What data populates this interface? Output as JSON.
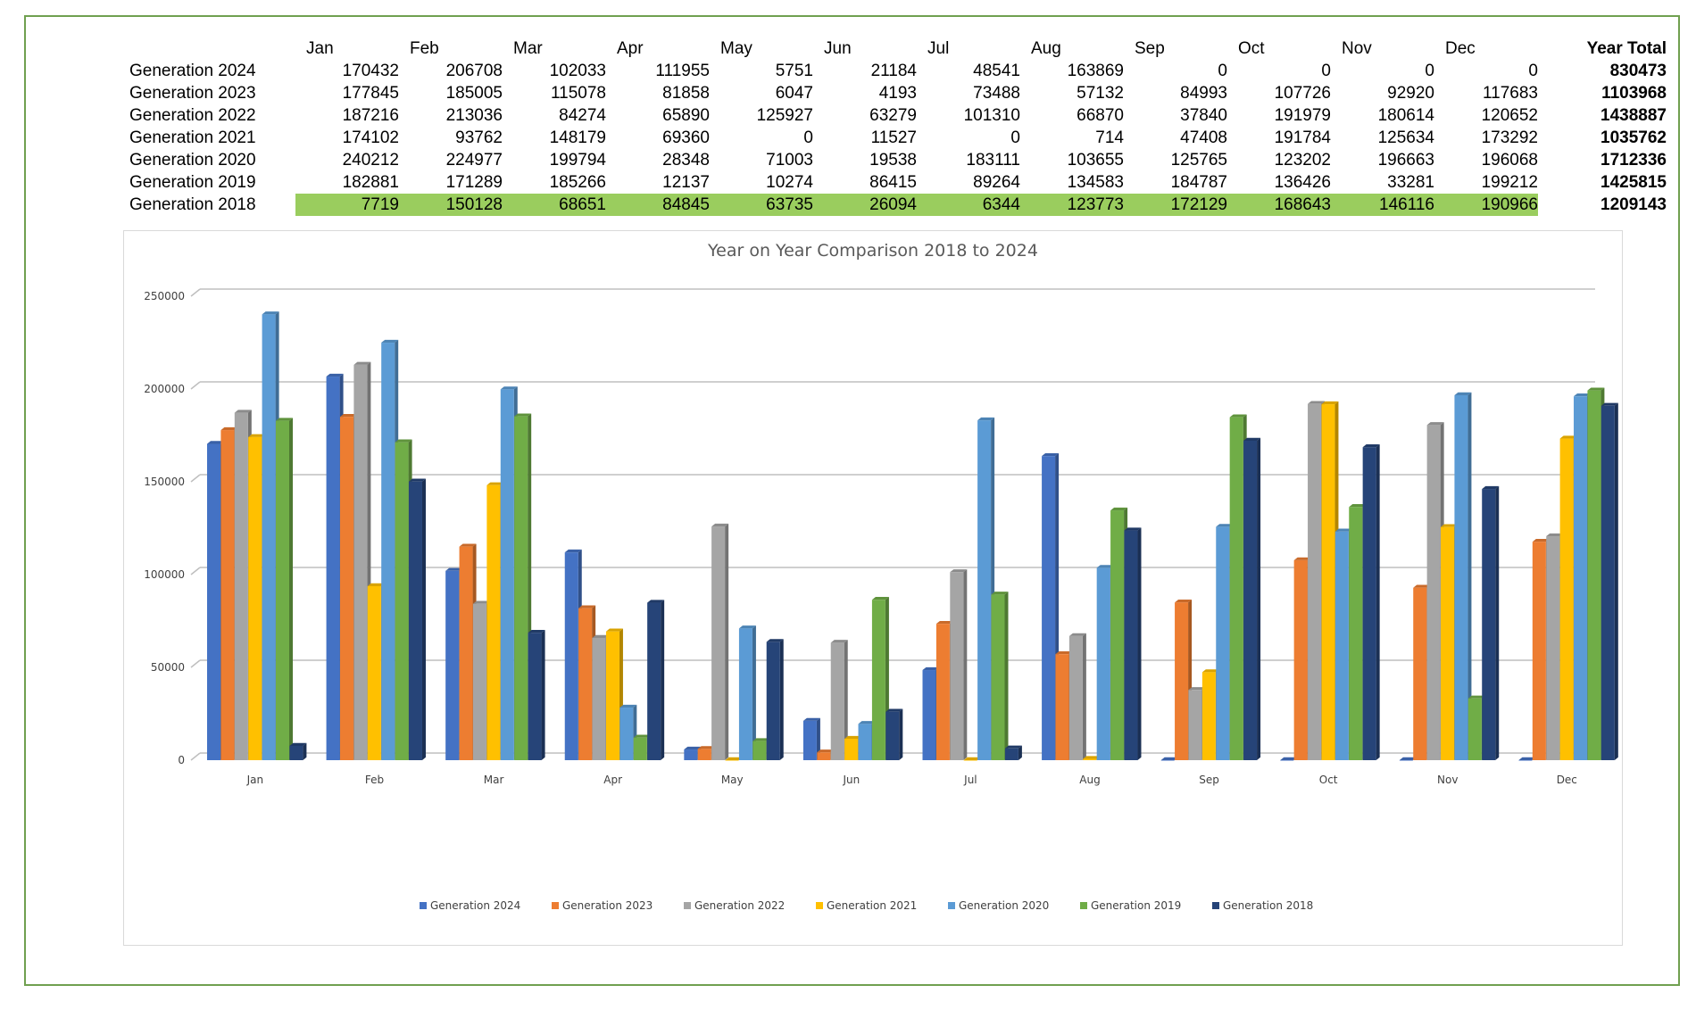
{
  "table": {
    "months": [
      "Jan",
      "Feb",
      "Mar",
      "Apr",
      "May",
      "Jun",
      "Jul",
      "Aug",
      "Sep",
      "Oct",
      "Nov",
      "Dec"
    ],
    "total_header": "Year Total",
    "rows": [
      {
        "label": "Generation 2024",
        "values": [
          "170432",
          "206708",
          "102033",
          "111955",
          "5751",
          "21184",
          "48541",
          "163869",
          "0",
          "0",
          "0",
          "0"
        ],
        "total": "830473"
      },
      {
        "label": "Generation 2023",
        "values": [
          "177845",
          "185005",
          "115078",
          "81858",
          "6047",
          "4193",
          "73488",
          "57132",
          "84993",
          "107726",
          "92920",
          "117683"
        ],
        "total": "1103968"
      },
      {
        "label": "Generation 2022",
        "values": [
          "187216",
          "213036",
          "84274",
          "65890",
          "125927",
          "63279",
          "101310",
          "66870",
          "37840",
          "191979",
          "180614",
          "120652"
        ],
        "total": "1438887"
      },
      {
        "label": "Generation 2021",
        "values": [
          "174102",
          "93762",
          "148179",
          "69360",
          "0",
          "11527",
          "0",
          "714",
          "47408",
          "191784",
          "125634",
          "173292"
        ],
        "total": "1035762"
      },
      {
        "label": "Generation 2020",
        "values": [
          "240212",
          "224977",
          "199794",
          "28348",
          "71003",
          "19538",
          "183111",
          "103655",
          "125765",
          "123202",
          "196663",
          "196068"
        ],
        "total": "1712336"
      },
      {
        "label": "Generation 2019",
        "values": [
          "182881",
          "171289",
          "185266",
          "12137",
          "10274",
          "86415",
          "89264",
          "134583",
          "184787",
          "136426",
          "33281",
          "199212"
        ],
        "total": "1425815"
      },
      {
        "label": "Generation 2018",
        "values": [
          "7719",
          "150128",
          "68651",
          "84845",
          "63735",
          "26094",
          "6344",
          "123773",
          "172129",
          "168643",
          "146116",
          "190966"
        ],
        "total": "1209143",
        "highlight_color": "#9acd5e"
      }
    ]
  },
  "chart_data": {
    "type": "bar",
    "title": "Year on Year Comparison 2018 to 2024",
    "xlabel": "",
    "ylabel": "",
    "ylim": [
      0,
      250000
    ],
    "yticks": [
      0,
      50000,
      100000,
      150000,
      200000,
      250000
    ],
    "grid": true,
    "legend_position": "bottom",
    "categories": [
      "Jan",
      "Feb",
      "Mar",
      "Apr",
      "May",
      "Jun",
      "Jul",
      "Aug",
      "Sep",
      "Oct",
      "Nov",
      "Dec"
    ],
    "series": [
      {
        "name": "Generation 2024",
        "color": "#4472c4",
        "values": [
          170432,
          206708,
          102033,
          111955,
          5751,
          21184,
          48541,
          163869,
          0,
          0,
          0,
          0
        ]
      },
      {
        "name": "Generation 2023",
        "color": "#ed7d31",
        "values": [
          177845,
          185005,
          115078,
          81858,
          6047,
          4193,
          73488,
          57132,
          84993,
          107726,
          92920,
          117683
        ]
      },
      {
        "name": "Generation 2022",
        "color": "#a5a5a5",
        "values": [
          187216,
          213036,
          84274,
          65890,
          125927,
          63279,
          101310,
          66870,
          37840,
          191979,
          180614,
          120652
        ]
      },
      {
        "name": "Generation 2021",
        "color": "#ffc000",
        "values": [
          174102,
          93762,
          148179,
          69360,
          0,
          11527,
          0,
          714,
          47408,
          191784,
          125634,
          173292
        ]
      },
      {
        "name": "Generation 2020",
        "color": "#5b9bd5",
        "values": [
          240212,
          224977,
          199794,
          28348,
          71003,
          19538,
          183111,
          103655,
          125765,
          123202,
          196663,
          196068
        ]
      },
      {
        "name": "Generation 2019",
        "color": "#70ad47",
        "values": [
          182881,
          171289,
          185266,
          12137,
          10274,
          86415,
          89264,
          134583,
          184787,
          136426,
          33281,
          199212
        ]
      },
      {
        "name": "Generation 2018",
        "color": "#264478",
        "values": [
          7719,
          150128,
          68651,
          84845,
          63735,
          26094,
          6344,
          123773,
          172129,
          168643,
          146116,
          190966
        ]
      }
    ]
  }
}
